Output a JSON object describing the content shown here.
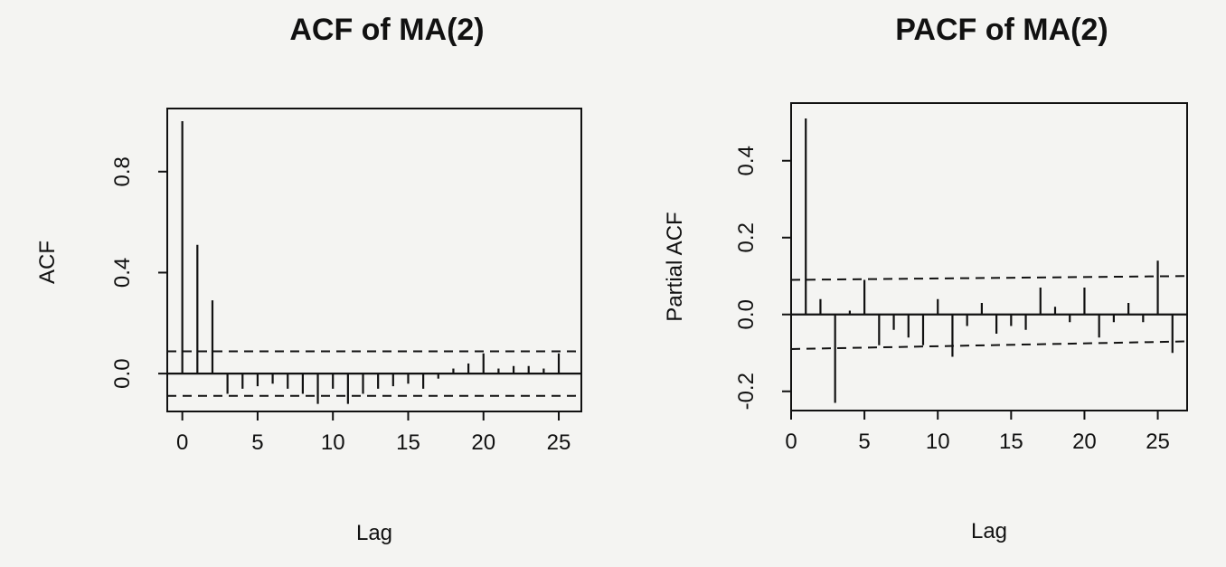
{
  "chart_data": [
    {
      "type": "bar",
      "title": "ACF of MA(2)",
      "xlabel": "Lag",
      "ylabel": "ACF",
      "xlim": [
        -1,
        26.5
      ],
      "ylim": [
        -0.15,
        1.05
      ],
      "x_ticks": [
        0,
        5,
        10,
        15,
        20,
        25
      ],
      "y_ticks": [
        0.0,
        0.4,
        0.8
      ],
      "y_tick_labels": [
        "0.0",
        "0.4",
        "0.8"
      ],
      "ci": 0.088,
      "lags": [
        0,
        1,
        2,
        3,
        4,
        5,
        6,
        7,
        8,
        9,
        10,
        11,
        12,
        13,
        14,
        15,
        16,
        17,
        18,
        19,
        20,
        21,
        22,
        23,
        24,
        25
      ],
      "values": [
        1.0,
        0.51,
        0.29,
        -0.08,
        -0.06,
        -0.05,
        -0.04,
        -0.06,
        -0.08,
        -0.12,
        -0.06,
        -0.12,
        -0.08,
        -0.06,
        -0.05,
        -0.04,
        -0.06,
        -0.02,
        0.02,
        0.04,
        0.08,
        0.02,
        0.03,
        0.03,
        0.02,
        0.08
      ]
    },
    {
      "type": "bar",
      "title": "PACF of MA(2)",
      "xlabel": "Lag",
      "ylabel": "Partial ACF",
      "xlim": [
        0,
        27
      ],
      "ylim": [
        -0.25,
        0.55
      ],
      "x_ticks": [
        0,
        5,
        10,
        15,
        20,
        25
      ],
      "y_ticks": [
        -0.2,
        0.0,
        0.2,
        0.4
      ],
      "y_tick_labels": [
        "-0.2",
        "0.0",
        "0.2",
        "0.4"
      ],
      "ci_upper": [
        0.09,
        0.1
      ],
      "ci_lower": [
        -0.09,
        -0.07
      ],
      "lags": [
        1,
        2,
        3,
        4,
        5,
        6,
        7,
        8,
        9,
        10,
        11,
        12,
        13,
        14,
        15,
        16,
        17,
        18,
        19,
        20,
        21,
        22,
        23,
        24,
        25,
        26
      ],
      "values": [
        0.51,
        0.04,
        -0.23,
        0.01,
        0.09,
        -0.08,
        -0.04,
        -0.06,
        -0.08,
        0.04,
        -0.11,
        -0.03,
        0.03,
        -0.05,
        -0.03,
        -0.04,
        0.07,
        0.02,
        -0.02,
        0.07,
        -0.06,
        -0.02,
        0.03,
        -0.02,
        0.14,
        -0.1
      ]
    }
  ]
}
